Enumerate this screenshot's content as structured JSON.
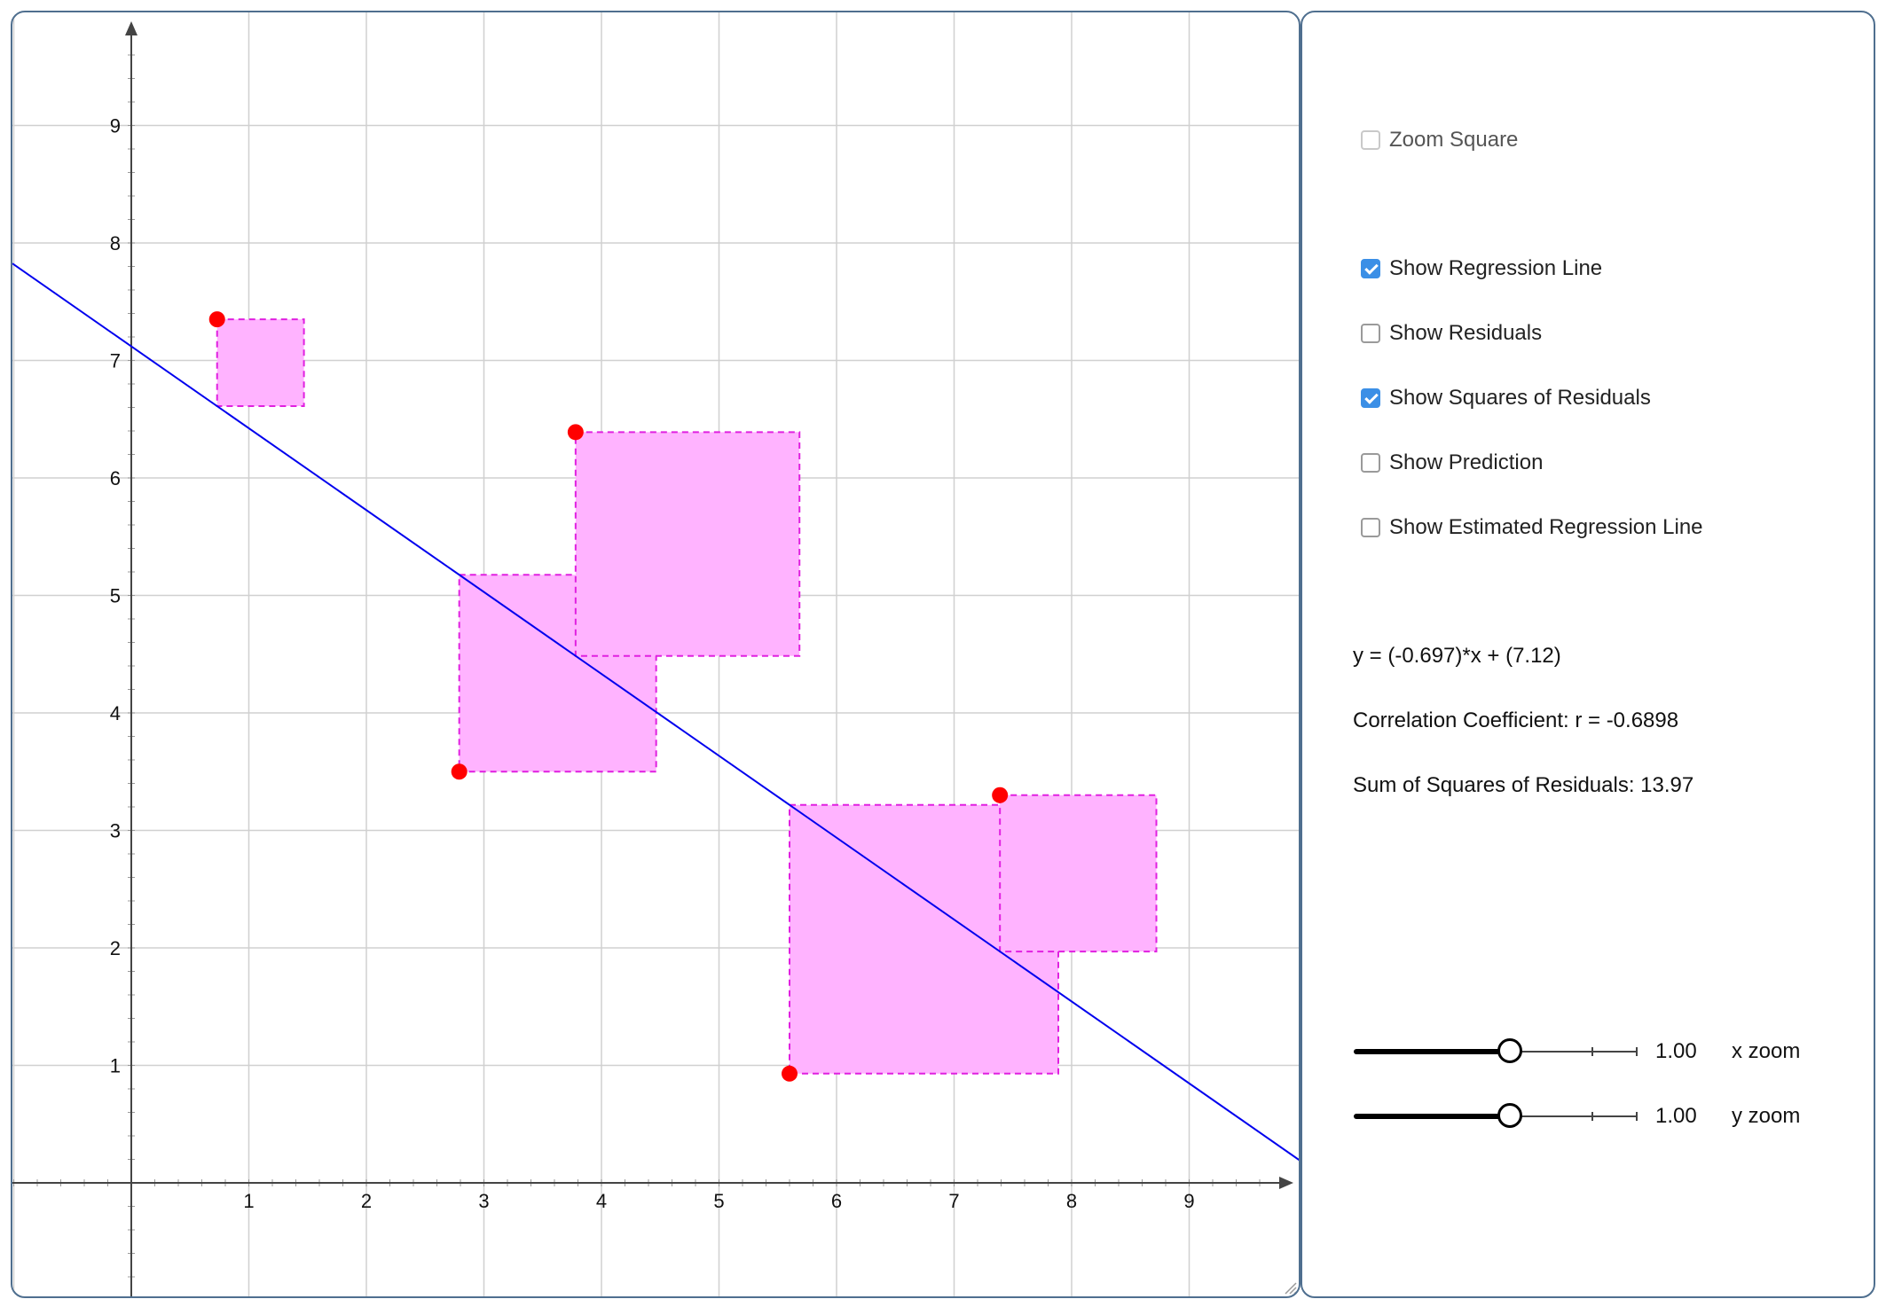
{
  "graph": {
    "x_ticks": [
      "1",
      "2",
      "3",
      "4",
      "5",
      "6",
      "7",
      "8",
      "9"
    ],
    "y_ticks": [
      "1",
      "2",
      "3",
      "4",
      "5",
      "6",
      "7",
      "8",
      "9"
    ],
    "x_range": [
      -1,
      10
    ],
    "y_range": [
      -1,
      10
    ],
    "points": [
      {
        "x": 0.73,
        "y": 7.35
      },
      {
        "x": 2.79,
        "y": 3.5
      },
      {
        "x": 3.78,
        "y": 6.39
      },
      {
        "x": 5.6,
        "y": 0.93
      },
      {
        "x": 7.39,
        "y": 3.3
      }
    ],
    "regression": {
      "slope": -0.697,
      "intercept": 7.12
    },
    "colors": {
      "point": "#ff0000",
      "line": "#0000ee",
      "square_fill": "#ffb3ff",
      "square_stroke": "#e020e0",
      "grid": "#d0d0d0",
      "axis": "#444444"
    }
  },
  "controls": {
    "zoom_square": {
      "label": "Zoom Square",
      "checked": false,
      "disabled": true
    },
    "checkboxes": [
      {
        "label": "Show Regression Line",
        "checked": true
      },
      {
        "label": "Show Residuals",
        "checked": false
      },
      {
        "label": "Show Squares of Residuals",
        "checked": true
      },
      {
        "label": "Show Prediction",
        "checked": false
      },
      {
        "label": "Show Estimated Regression Line",
        "checked": false
      }
    ],
    "equation": "y = (-0.697)*x + (7.12)",
    "correlation": "Correlation Coefficient: r = -0.6898",
    "sum_squares": "Sum of Squares of Residuals: 13.97",
    "sliders": [
      {
        "value": "1.00",
        "name": "x zoom",
        "fraction": 0.5
      },
      {
        "value": "1.00",
        "name": "y zoom",
        "fraction": 0.5
      }
    ]
  }
}
